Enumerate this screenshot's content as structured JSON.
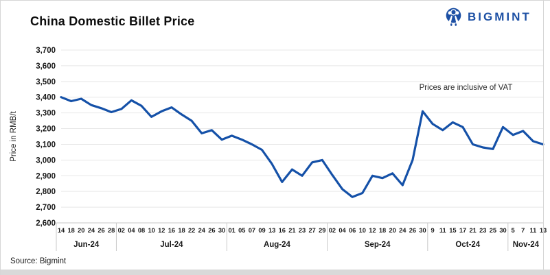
{
  "header": {
    "title": "China Domestic Billet Price",
    "logo_text": "BIGMINT"
  },
  "footer": {
    "source": "Source: Bigmint"
  },
  "colors": {
    "line_blue": "#1551a8",
    "logo_blue": "#1d50a4",
    "gridline": "#e7e7e7",
    "axis": "#c6c6c6",
    "footer_strip": "#d9d9d9",
    "text": "#1a1a1a"
  },
  "chart_data": {
    "type": "line",
    "title": "China Domestic Billet Price",
    "ylabel": "Price in RMB/t",
    "xlabel": "",
    "annotation": "Prices are inclusive of VAT",
    "legend": "none",
    "grid": true,
    "ylim": [
      2600,
      3700
    ],
    "ytick_step": 100,
    "ytick_labels": [
      "2,600",
      "2,700",
      "2,800",
      "2,900",
      "3,000",
      "3,100",
      "3,200",
      "3,300",
      "3,400",
      "3,500",
      "3,600",
      "3,700"
    ],
    "series_name": "China domestic billet price (RMB/t)",
    "groups": [
      {
        "month": "Jun-24",
        "ticks": [
          "14",
          "18",
          "20",
          "24",
          "26",
          "28"
        ],
        "values": [
          3400,
          3375,
          3390,
          3350,
          3330,
          3305
        ]
      },
      {
        "month": "Jul-24",
        "ticks": [
          "02",
          "04",
          "08",
          "10",
          "12",
          "16",
          "18",
          "22",
          "24",
          "26",
          "30"
        ],
        "values": [
          3325,
          3380,
          3345,
          3275,
          3310,
          3335,
          3290,
          3250,
          3170,
          3190,
          3130
        ]
      },
      {
        "month": "Aug-24",
        "ticks": [
          "01",
          "05",
          "07",
          "09",
          "13",
          "16",
          "21",
          "23",
          "27",
          "29"
        ],
        "values": [
          3155,
          3130,
          3100,
          3065,
          2975,
          2860,
          2940,
          2900,
          2985,
          3000
        ]
      },
      {
        "month": "Sep-24",
        "ticks": [
          "02",
          "04",
          "06",
          "10",
          "12",
          "18",
          "20",
          "24",
          "26",
          "30"
        ],
        "values": [
          2905,
          2815,
          2765,
          2790,
          2900,
          2885,
          2915,
          2840,
          3000,
          3310
        ]
      },
      {
        "month": "Oct-24",
        "ticks": [
          "9",
          "11",
          "15",
          "17",
          "21",
          "23",
          "25",
          "30"
        ],
        "values": [
          3230,
          3190,
          3240,
          3210,
          3100,
          3080,
          3070,
          3210
        ]
      },
      {
        "month": "Nov-24",
        "ticks": [
          "5",
          "7",
          "11",
          "13"
        ],
        "values": [
          3160,
          3185,
          3120,
          3100
        ]
      }
    ]
  }
}
